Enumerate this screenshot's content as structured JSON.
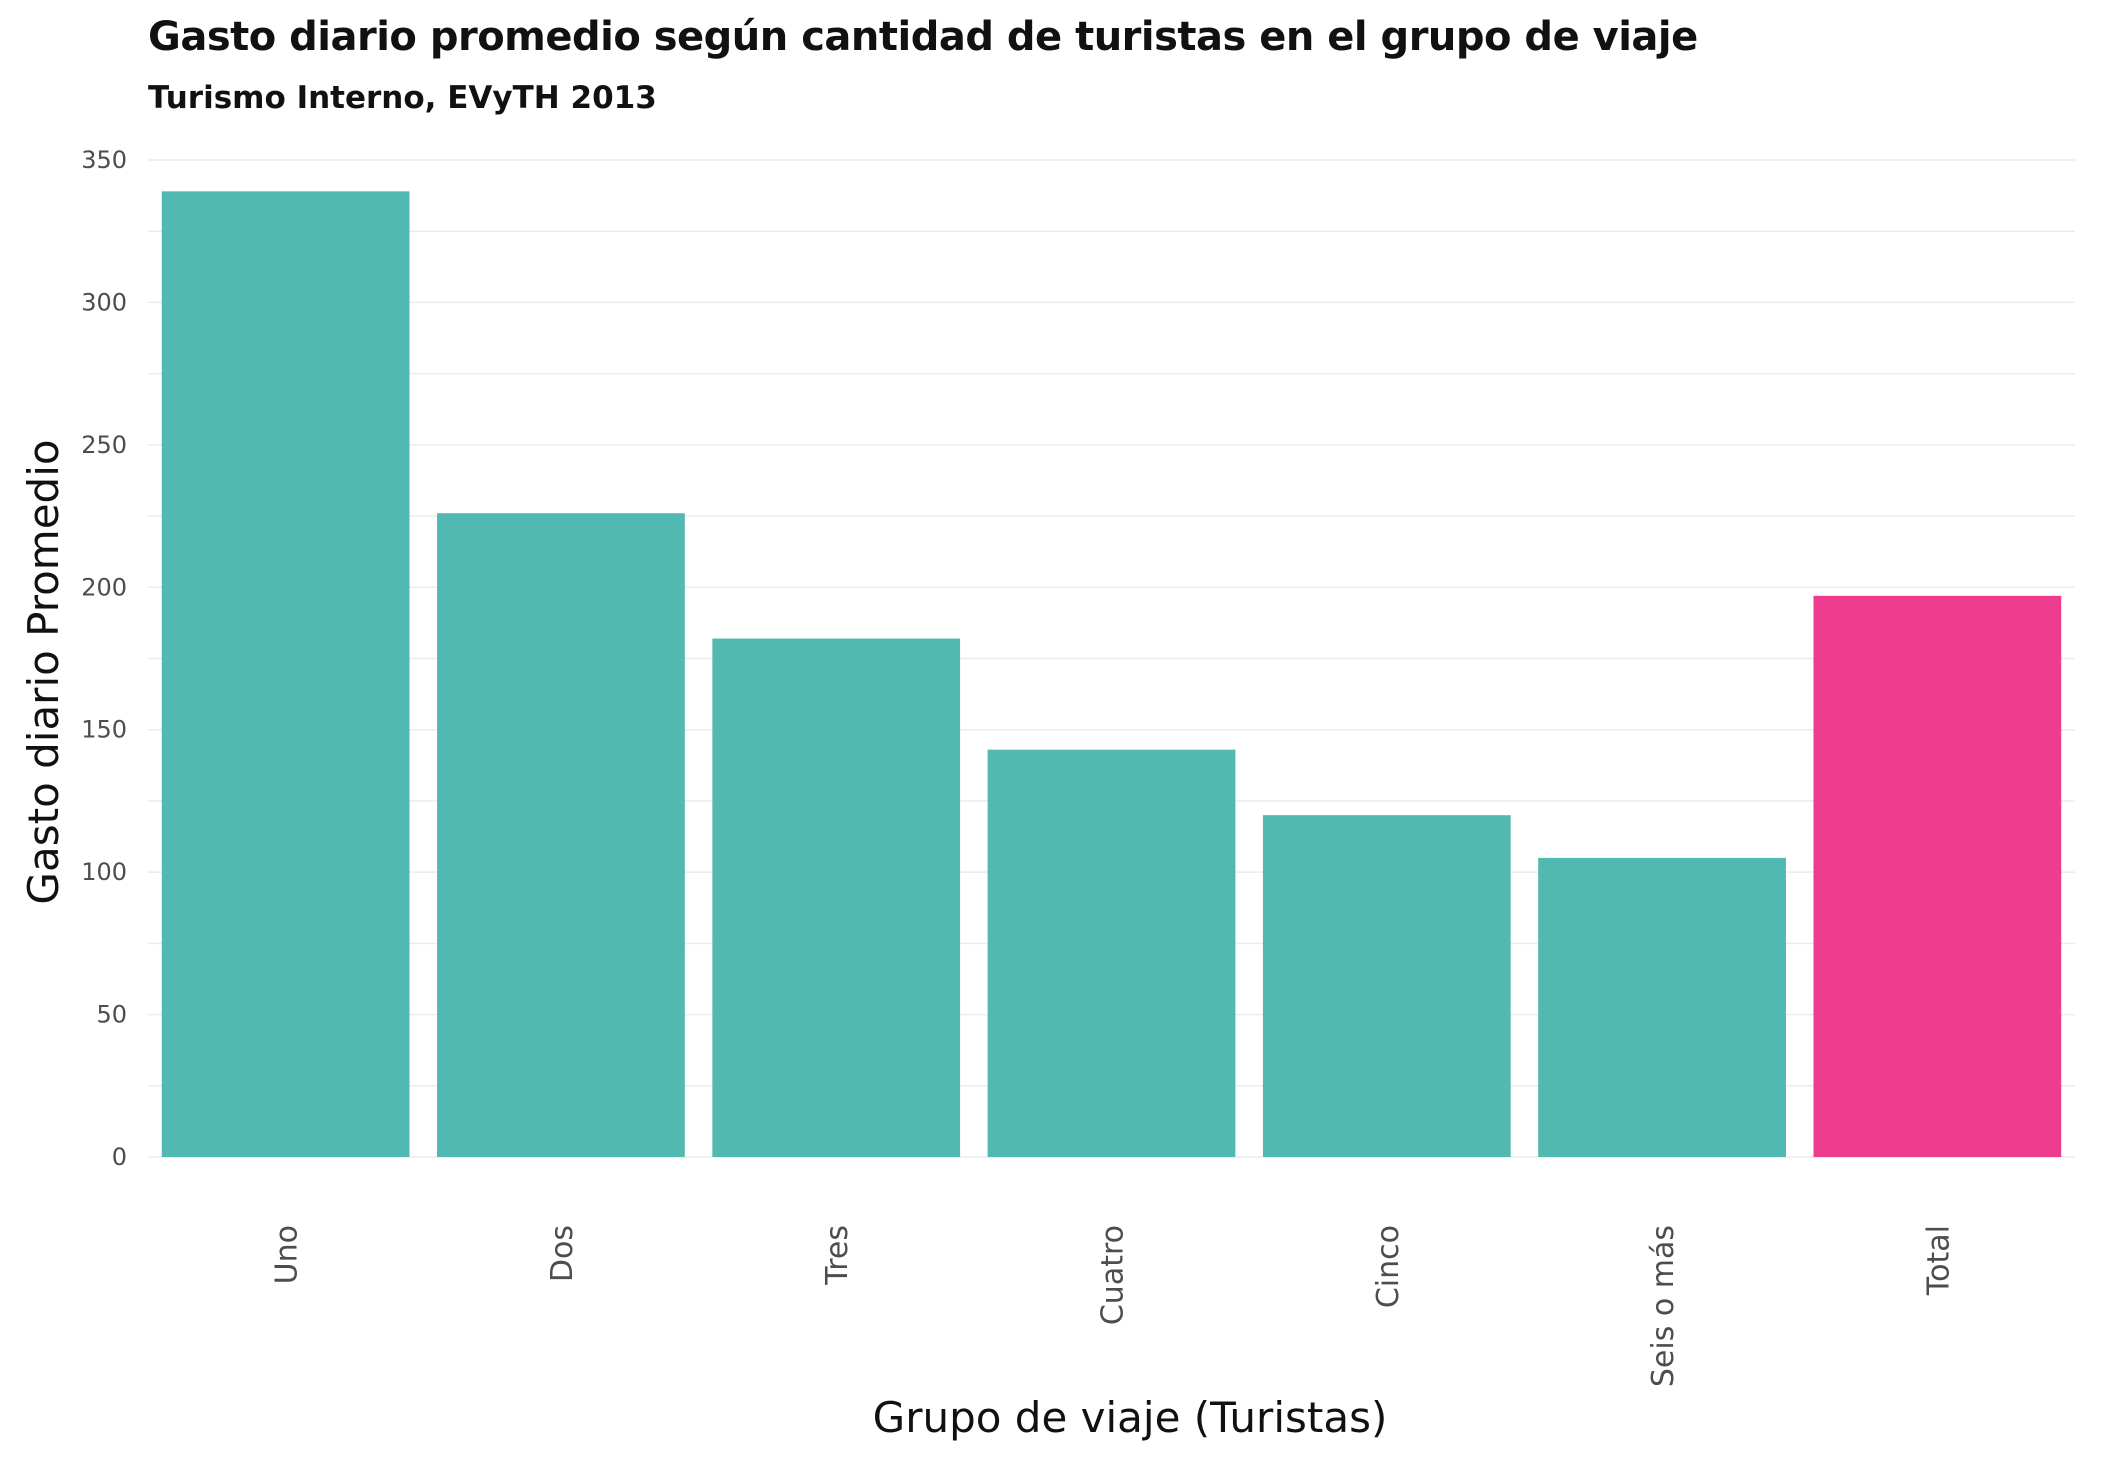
{
  "chart_data": {
    "type": "bar",
    "title": "Gasto diario promedio según cantidad de turistas en el grupo de viaje",
    "subtitle": "Turismo Interno, EVyTH 2013",
    "xlabel": "Grupo de viaje (Turistas)",
    "ylabel": "Gasto diario Promedio",
    "categories": [
      "Uno",
      "Dos",
      "Tres",
      "Cuatro",
      "Cinco",
      "Seis o más",
      "Total"
    ],
    "values": [
      339,
      226,
      182,
      143,
      120,
      105,
      197
    ],
    "colors": [
      "#52b8b2",
      "#52b8b2",
      "#52b8b2",
      "#52b8b2",
      "#52b8b2",
      "#52b8b2",
      "#ee3d8f"
    ],
    "ylim": [
      0,
      350
    ],
    "yticks": [
      "0",
      "50",
      "100",
      "150",
      "200",
      "250",
      "300",
      "350"
    ],
    "grid": true,
    "legend": "none"
  }
}
